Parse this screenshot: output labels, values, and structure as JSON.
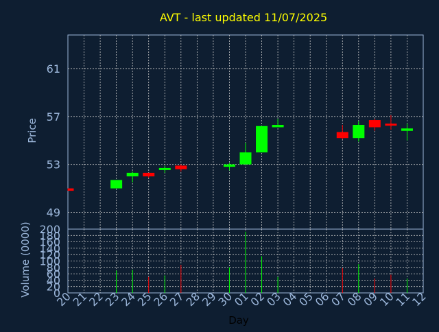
{
  "title": "AVT - last updated 11/07/2025",
  "colors": {
    "background": "#0e1e31",
    "axis_text": "#9db8dc",
    "title": "#ffff00",
    "up": "#00ff00",
    "down": "#ff0000",
    "grid": "#c8c8c8",
    "frame": "#9db8dc"
  },
  "chart_data": [
    {
      "type": "candlestick",
      "ylabel": "Price",
      "ylim": [
        47.6,
        63.8
      ],
      "yticks": [
        49,
        53,
        57,
        61
      ],
      "grid": true,
      "categories": [
        "20",
        "21",
        "22",
        "23",
        "24",
        "25",
        "26",
        "27",
        "28",
        "29",
        "30",
        "01",
        "02",
        "03",
        "04",
        "05",
        "06",
        "07",
        "08",
        "09",
        "10",
        "11",
        "12"
      ],
      "candles": [
        {
          "day": "20",
          "open": 51.0,
          "close": 50.8,
          "high": 51.0,
          "low": 50.8
        },
        {
          "day": "23",
          "open": 51.0,
          "close": 51.7,
          "high": 51.7,
          "low": 51.0
        },
        {
          "day": "24",
          "open": 52.0,
          "close": 52.3,
          "high": 52.4,
          "low": 51.5
        },
        {
          "day": "25",
          "open": 52.3,
          "close": 52.0,
          "high": 52.3,
          "low": 51.9
        },
        {
          "day": "26",
          "open": 52.6,
          "close": 52.7,
          "high": 52.9,
          "low": 52.3
        },
        {
          "day": "27",
          "open": 52.9,
          "close": 52.6,
          "high": 53.0,
          "low": 52.4
        },
        {
          "day": "30",
          "open": 52.8,
          "close": 53.0,
          "high": 53.1,
          "low": 52.5
        },
        {
          "day": "01",
          "open": 53.0,
          "close": 54.0,
          "high": 54.8,
          "low": 53.0
        },
        {
          "day": "02",
          "open": 54.0,
          "close": 56.2,
          "high": 56.2,
          "low": 54.0
        },
        {
          "day": "03",
          "open": 56.1,
          "close": 56.3,
          "high": 56.8,
          "low": 56.1
        },
        {
          "day": "07",
          "open": 55.7,
          "close": 55.2,
          "high": 56.3,
          "low": 55.1
        },
        {
          "day": "08",
          "open": 55.2,
          "close": 56.3,
          "high": 56.6,
          "low": 54.9
        },
        {
          "day": "09",
          "open": 56.7,
          "close": 56.1,
          "high": 56.8,
          "low": 55.8
        },
        {
          "day": "10",
          "open": 56.4,
          "close": 56.3,
          "high": 57.1,
          "low": 55.9
        },
        {
          "day": "11",
          "open": 55.8,
          "close": 56.0,
          "high": 56.4,
          "low": 55.0
        }
      ]
    },
    {
      "type": "bar",
      "ylabel": "Volume (0000)",
      "xlabel": "Day",
      "ylim": [
        0,
        200
      ],
      "yticks": [
        0,
        20,
        40,
        60,
        80,
        100,
        120,
        140,
        160,
        180,
        200
      ],
      "grid": true,
      "categories": [
        "20",
        "21",
        "22",
        "23",
        "24",
        "25",
        "26",
        "27",
        "28",
        "29",
        "30",
        "01",
        "02",
        "03",
        "04",
        "05",
        "06",
        "07",
        "08",
        "09",
        "10",
        "11",
        "12"
      ],
      "bars": [
        {
          "day": "23",
          "value": 70,
          "color": "up"
        },
        {
          "day": "24",
          "value": 72,
          "color": "up"
        },
        {
          "day": "25",
          "value": 50,
          "color": "down"
        },
        {
          "day": "26",
          "value": 55,
          "color": "up"
        },
        {
          "day": "27",
          "value": 88,
          "color": "down"
        },
        {
          "day": "30",
          "value": 80,
          "color": "up"
        },
        {
          "day": "01",
          "value": 192,
          "color": "up"
        },
        {
          "day": "02",
          "value": 115,
          "color": "up"
        },
        {
          "day": "03",
          "value": 50,
          "color": "up"
        },
        {
          "day": "07",
          "value": 78,
          "color": "down"
        },
        {
          "day": "08",
          "value": 90,
          "color": "up"
        },
        {
          "day": "09",
          "value": 45,
          "color": "down"
        },
        {
          "day": "10",
          "value": 57,
          "color": "down"
        },
        {
          "day": "11",
          "value": 45,
          "color": "up"
        }
      ]
    }
  ]
}
